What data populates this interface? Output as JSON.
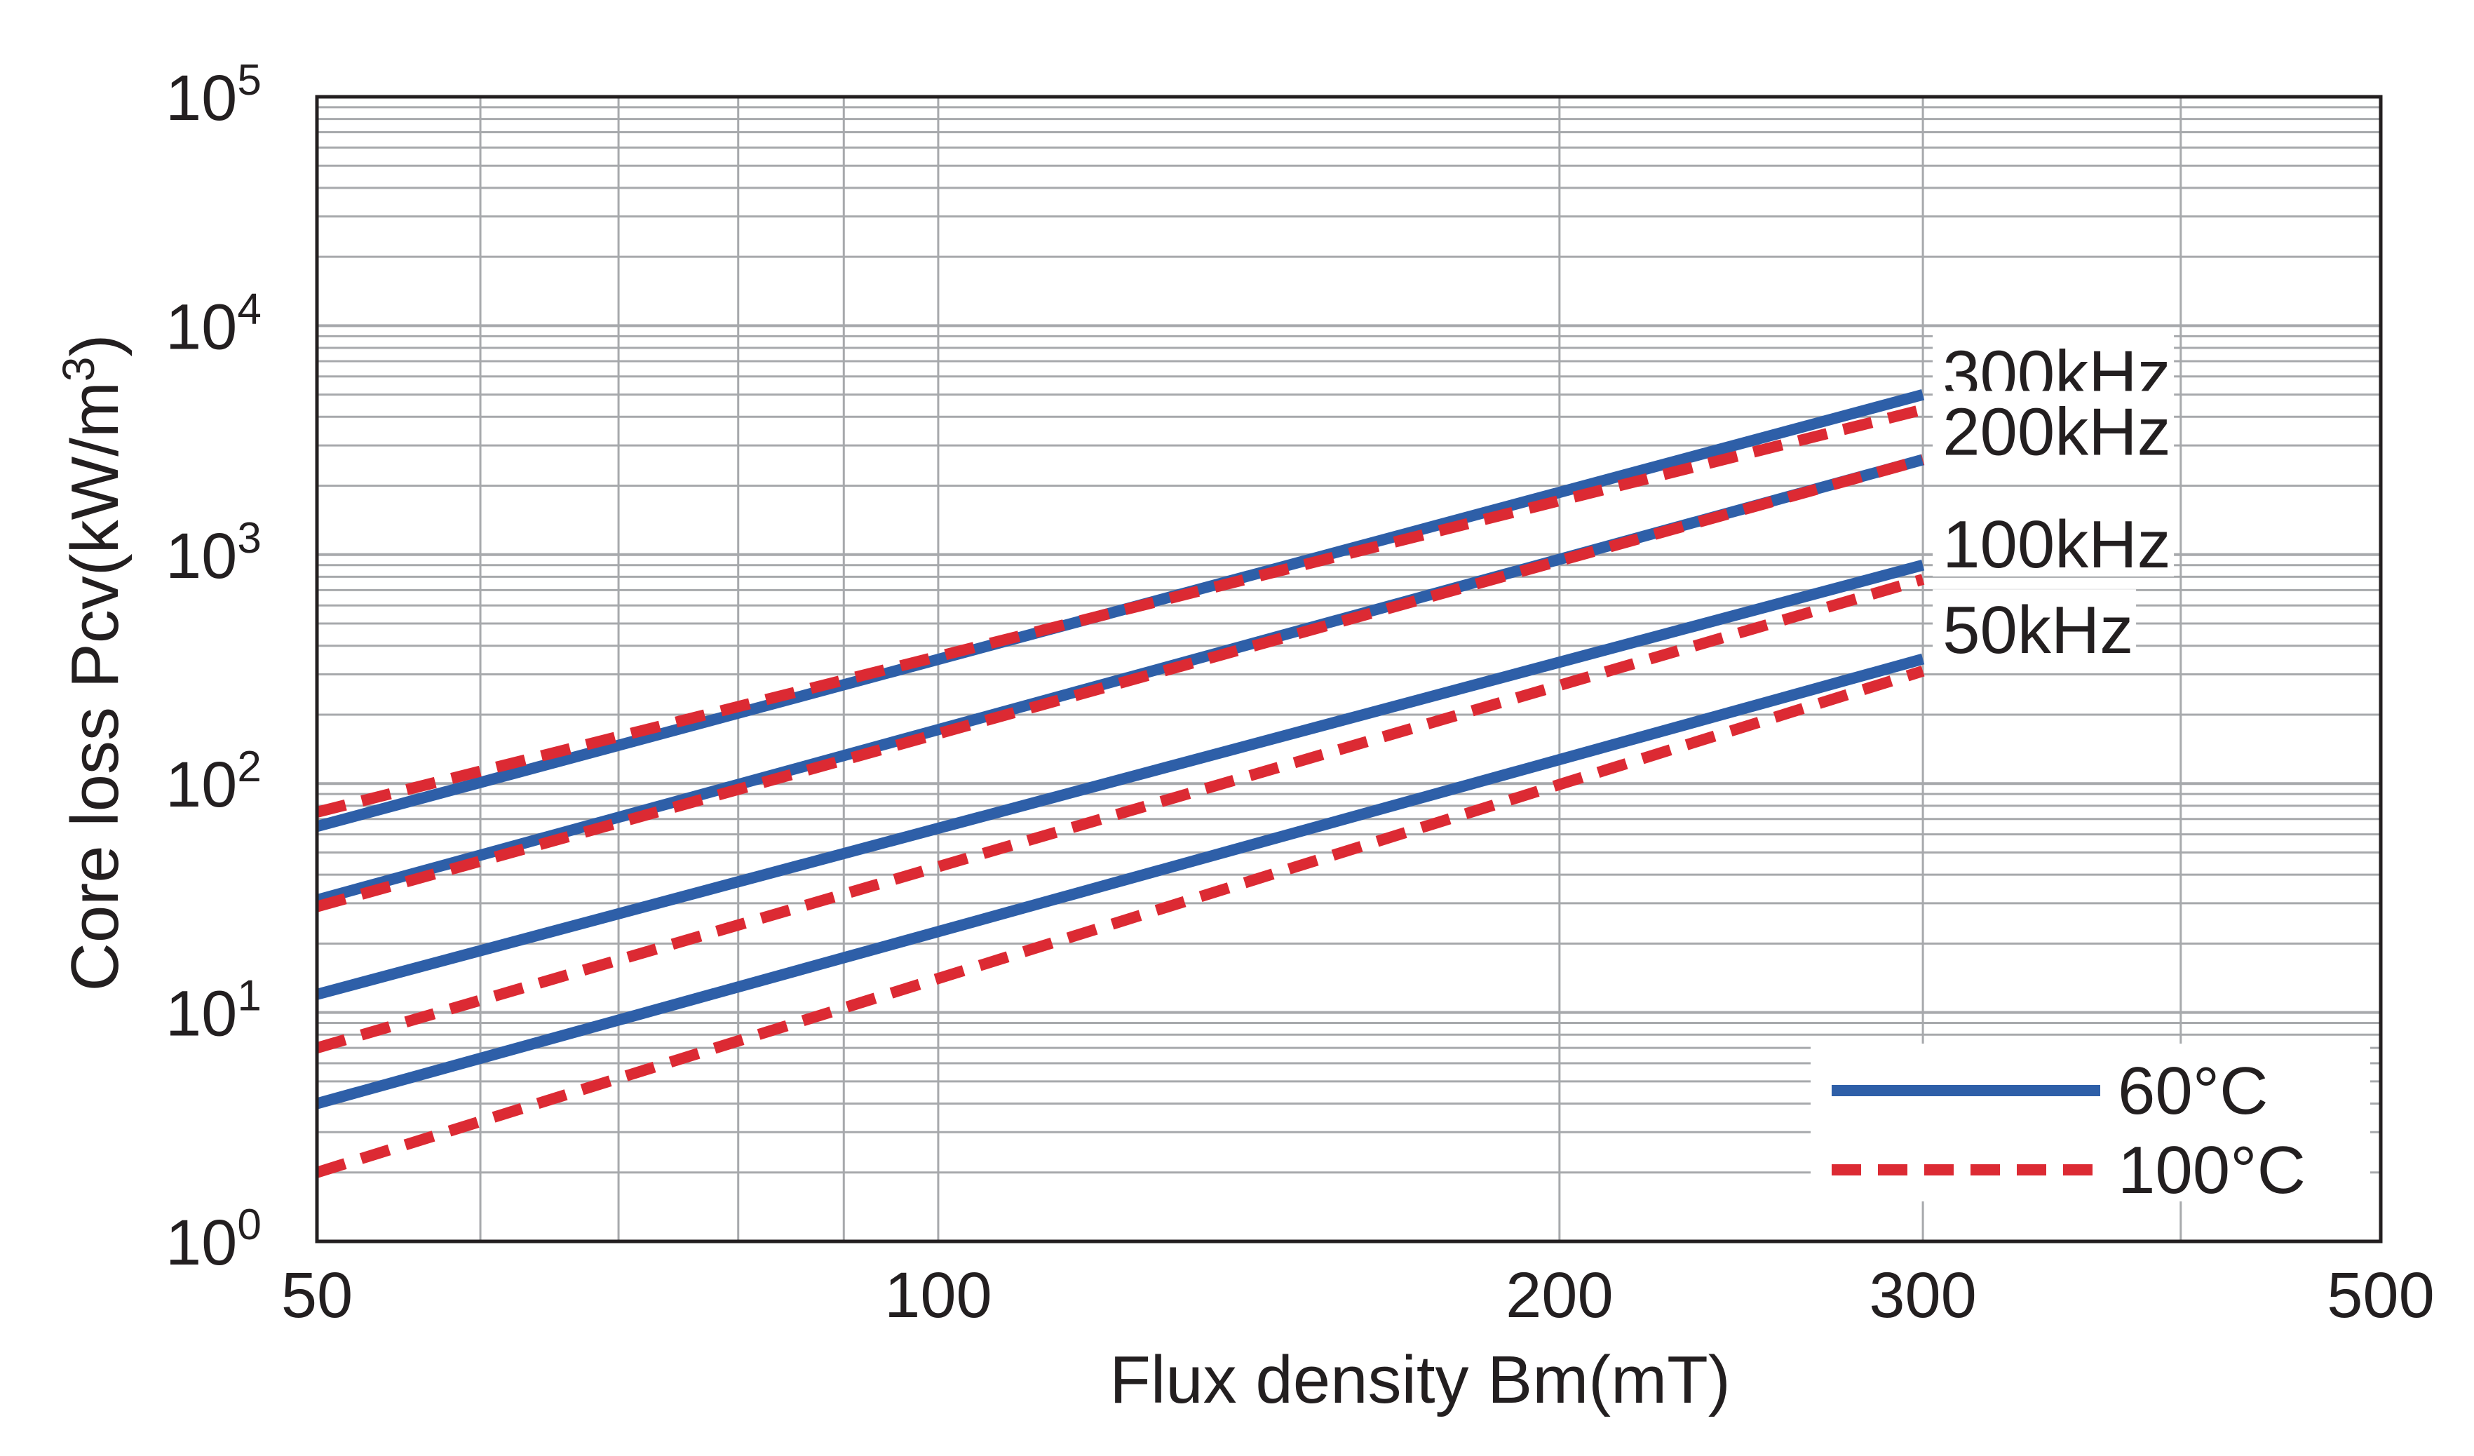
{
  "chart_data": {
    "type": "line",
    "xlabel": "Flux density Bm(mT)",
    "ylabel": "Core loss Pcv(kW/m3)",
    "xscale": "log",
    "yscale": "log",
    "xlim": [
      50,
      500
    ],
    "ylim": [
      1,
      100000
    ],
    "x_ticks": [
      "50",
      "100",
      "200",
      "300",
      "500"
    ],
    "y_ticks": [
      {
        "base": "10",
        "exp": "0"
      },
      {
        "base": "10",
        "exp": "1"
      },
      {
        "base": "10",
        "exp": "2"
      },
      {
        "base": "10",
        "exp": "3"
      },
      {
        "base": "10",
        "exp": "4"
      },
      {
        "base": "10",
        "exp": "5"
      }
    ],
    "grid": true,
    "legend": {
      "position": "bottom-right",
      "entries": [
        {
          "label": "60°C",
          "style": "solid",
          "color": "#2e5fa8"
        },
        {
          "label": "100°C",
          "style": "dashed",
          "color": "#dc2a33"
        }
      ]
    },
    "frequency_labels": [
      "300kHz",
      "200kHz",
      "100kHz",
      "50kHz"
    ],
    "series": [
      {
        "frequency": "300kHz",
        "temperature": "60°C",
        "style": "solid",
        "x": [
          50,
          300
        ],
        "y": [
          65,
          5000
        ]
      },
      {
        "frequency": "300kHz",
        "temperature": "100°C",
        "style": "dashed",
        "x": [
          50,
          300
        ],
        "y": [
          75,
          4300
        ]
      },
      {
        "frequency": "200kHz",
        "temperature": "60°C",
        "style": "solid",
        "x": [
          50,
          300
        ],
        "y": [
          31,
          2600
        ]
      },
      {
        "frequency": "200kHz",
        "temperature": "100°C",
        "style": "dashed",
        "x": [
          50,
          300
        ],
        "y": [
          29,
          2600
        ]
      },
      {
        "frequency": "100kHz",
        "temperature": "60°C",
        "style": "solid",
        "x": [
          50,
          300
        ],
        "y": [
          12,
          900
        ]
      },
      {
        "frequency": "100kHz",
        "temperature": "100°C",
        "style": "dashed",
        "x": [
          50,
          300
        ],
        "y": [
          7,
          780
        ]
      },
      {
        "frequency": "50kHz",
        "temperature": "60°C",
        "style": "solid",
        "x": [
          50,
          300
        ],
        "y": [
          4,
          350
        ]
      },
      {
        "frequency": "50kHz",
        "temperature": "100°C",
        "style": "dashed",
        "x": [
          50,
          300
        ],
        "y": [
          2,
          310
        ]
      }
    ],
    "colors": {
      "solid": "#2e5fa8",
      "dashed": "#dc2a33",
      "grid": "#a7a9ac",
      "axis": "#231f20"
    }
  }
}
